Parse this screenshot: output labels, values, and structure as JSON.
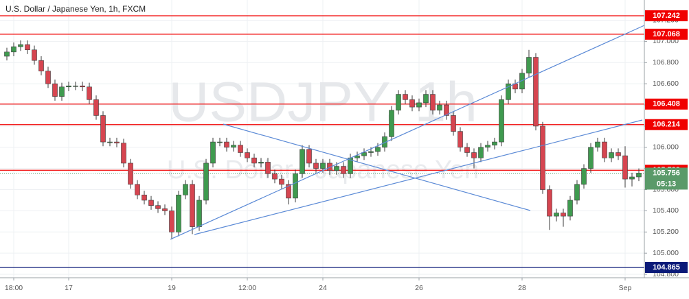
{
  "chart_data": {
    "type": "candlestick",
    "title": "U.S. Dollar / Japanese Yen, 1h, FXCM",
    "watermark": "USDJPY, 1h",
    "watermark_subtitle": "U.S. Dollar / Japanese Yen",
    "categories": [
      null,
      "18:00",
      null,
      null,
      null,
      null,
      null,
      null,
      null,
      "17",
      null,
      null,
      null,
      null,
      null,
      null,
      null,
      null,
      null,
      null,
      null,
      null,
      null,
      null,
      "19",
      null,
      null,
      null,
      null,
      null,
      null,
      null,
      null,
      null,
      null,
      "12:00",
      null,
      null,
      null,
      null,
      null,
      null,
      null,
      null,
      null,
      null,
      "24",
      null,
      null,
      null,
      null,
      null,
      null,
      null,
      null,
      null,
      null,
      null,
      null,
      null,
      "26",
      null,
      null,
      null,
      null,
      null,
      null,
      null,
      null,
      null,
      null,
      null,
      null,
      null,
      null,
      "28",
      null,
      null,
      null,
      null,
      null,
      null,
      null,
      null,
      null,
      null,
      null,
      null,
      null,
      null,
      "Sep",
      null,
      null
    ],
    "open": [
      106.86,
      106.9,
      106.95,
      106.97,
      106.92,
      106.82,
      106.72,
      106.6,
      106.48,
      106.57,
      106.58,
      106.58,
      106.57,
      106.45,
      106.3,
      106.05,
      106.05,
      106.04,
      105.85,
      105.65,
      105.55,
      105.5,
      105.45,
      105.42,
      105.4,
      105.2,
      105.55,
      105.65,
      105.25,
      105.5,
      105.85,
      106.05,
      106.05,
      106.0,
      106.02,
      105.95,
      105.9,
      105.85,
      105.86,
      105.75,
      105.7,
      105.65,
      105.52,
      105.75,
      105.98,
      105.85,
      105.8,
      105.85,
      105.78,
      105.82,
      105.75,
      105.9,
      105.92,
      105.95,
      105.96,
      106.0,
      106.1,
      106.35,
      106.5,
      106.45,
      106.38,
      106.42,
      106.5,
      106.35,
      106.4,
      106.3,
      106.15,
      106.0,
      105.95,
      105.9,
      106.0,
      106.02,
      106.05,
      106.45,
      106.6,
      106.55,
      106.7,
      106.85,
      106.2,
      105.6,
      105.35,
      105.38,
      105.35,
      105.5,
      105.65,
      105.8,
      106.0,
      106.05,
      105.9,
      105.95,
      105.92,
      105.7,
      105.72
    ],
    "high": [
      106.94,
      106.99,
      107.01,
      107.01,
      106.96,
      106.86,
      106.76,
      106.64,
      106.61,
      106.62,
      106.62,
      106.62,
      106.61,
      106.49,
      106.34,
      106.09,
      106.09,
      106.08,
      105.89,
      105.69,
      105.59,
      105.54,
      105.49,
      105.46,
      105.44,
      105.59,
      105.69,
      105.69,
      105.54,
      105.89,
      106.09,
      106.09,
      106.09,
      106.06,
      106.06,
      105.99,
      105.94,
      105.9,
      105.9,
      105.79,
      105.74,
      105.69,
      105.79,
      106.02,
      106.02,
      105.89,
      105.89,
      105.89,
      105.86,
      105.86,
      105.94,
      105.96,
      105.99,
      106.0,
      106.04,
      106.14,
      106.39,
      106.54,
      106.54,
      106.49,
      106.46,
      106.54,
      106.54,
      106.44,
      106.44,
      106.34,
      106.19,
      106.04,
      105.99,
      106.04,
      106.06,
      106.09,
      106.49,
      106.64,
      106.64,
      106.74,
      106.92,
      106.89,
      106.24,
      105.64,
      105.42,
      105.42,
      105.54,
      105.69,
      105.84,
      106.04,
      106.09,
      106.09,
      105.99,
      105.99,
      106.01,
      105.76,
      105.8
    ],
    "low": [
      106.82,
      106.86,
      106.91,
      106.88,
      106.78,
      106.68,
      106.56,
      106.44,
      106.44,
      106.53,
      106.54,
      106.53,
      106.41,
      106.26,
      106.01,
      106.01,
      106.0,
      105.81,
      105.61,
      105.51,
      105.46,
      105.41,
      105.38,
      105.36,
      105.13,
      105.16,
      105.51,
      105.18,
      105.21,
      105.46,
      105.81,
      106.01,
      105.96,
      105.96,
      105.91,
      105.86,
      105.81,
      105.81,
      105.71,
      105.66,
      105.61,
      105.46,
      105.48,
      105.71,
      105.81,
      105.76,
      105.76,
      105.74,
      105.74,
      105.71,
      105.71,
      105.86,
      105.88,
      105.91,
      105.92,
      105.96,
      106.06,
      106.31,
      106.41,
      106.34,
      106.34,
      106.38,
      106.31,
      106.31,
      106.26,
      106.11,
      105.96,
      105.91,
      105.8,
      105.86,
      105.96,
      105.98,
      106.01,
      106.41,
      106.51,
      106.51,
      106.66,
      106.16,
      105.56,
      105.22,
      105.3,
      105.25,
      105.31,
      105.46,
      105.61,
      105.76,
      105.96,
      105.86,
      105.86,
      105.88,
      105.62,
      105.63,
      105.68
    ],
    "close": [
      106.9,
      106.95,
      106.97,
      106.92,
      106.82,
      106.72,
      106.6,
      106.48,
      106.57,
      106.58,
      106.58,
      106.57,
      106.45,
      106.3,
      106.05,
      106.05,
      106.04,
      105.85,
      105.65,
      105.55,
      105.5,
      105.45,
      105.42,
      105.4,
      105.2,
      105.55,
      105.65,
      105.25,
      105.5,
      105.85,
      106.05,
      106.05,
      106.0,
      106.02,
      105.95,
      105.9,
      105.85,
      105.86,
      105.75,
      105.7,
      105.65,
      105.52,
      105.75,
      105.98,
      105.85,
      105.8,
      105.85,
      105.78,
      105.82,
      105.75,
      105.9,
      105.92,
      105.95,
      105.96,
      106.0,
      106.1,
      106.35,
      106.5,
      106.45,
      106.38,
      106.42,
      106.5,
      106.35,
      106.4,
      106.3,
      106.15,
      106.0,
      105.95,
      105.9,
      106.0,
      106.02,
      106.05,
      106.45,
      106.6,
      106.55,
      106.7,
      106.85,
      106.2,
      105.6,
      105.35,
      105.38,
      105.35,
      105.5,
      105.65,
      105.8,
      106.0,
      106.05,
      105.9,
      105.95,
      105.92,
      105.7,
      105.72,
      105.756
    ],
    "up_color": "#3f9a4f",
    "down_color": "#d64550",
    "wick_color": "#3a3a3a",
    "ylim": [
      104.768,
      107.391
    ],
    "yticks": [
      {
        "value": 104.8,
        "label": "104.800"
      },
      {
        "value": 105.0,
        "label": "105.000"
      },
      {
        "value": 105.2,
        "label": "105.200"
      },
      {
        "value": 105.4,
        "label": "105.400"
      },
      {
        "value": 105.6,
        "label": "105.600"
      },
      {
        "value": 105.8,
        "label": "105.800"
      },
      {
        "value": 106.0,
        "label": "106.000"
      },
      {
        "value": 106.2,
        "label": "106.200"
      },
      {
        "value": 106.4,
        "label": "106.400"
      },
      {
        "value": 106.6,
        "label": "106.600"
      },
      {
        "value": 106.8,
        "label": "106.800"
      },
      {
        "value": 107.0,
        "label": "107.000"
      },
      {
        "value": 107.2,
        "label": "107.200"
      }
    ],
    "grid": true,
    "levels": [
      {
        "value": 107.242,
        "color": "#f00000"
      },
      {
        "value": 107.068,
        "color": "#f00000"
      },
      {
        "value": 106.408,
        "color": "#f00000"
      },
      {
        "value": 106.214,
        "color": "#f00000"
      },
      {
        "value": 105.783,
        "color": "#f00000"
      },
      {
        "value": 104.865,
        "color": "#0b1a78"
      }
    ],
    "last_price": 105.756,
    "last_price_color": "#5a9a69",
    "countdown": "05:13"
  }
}
